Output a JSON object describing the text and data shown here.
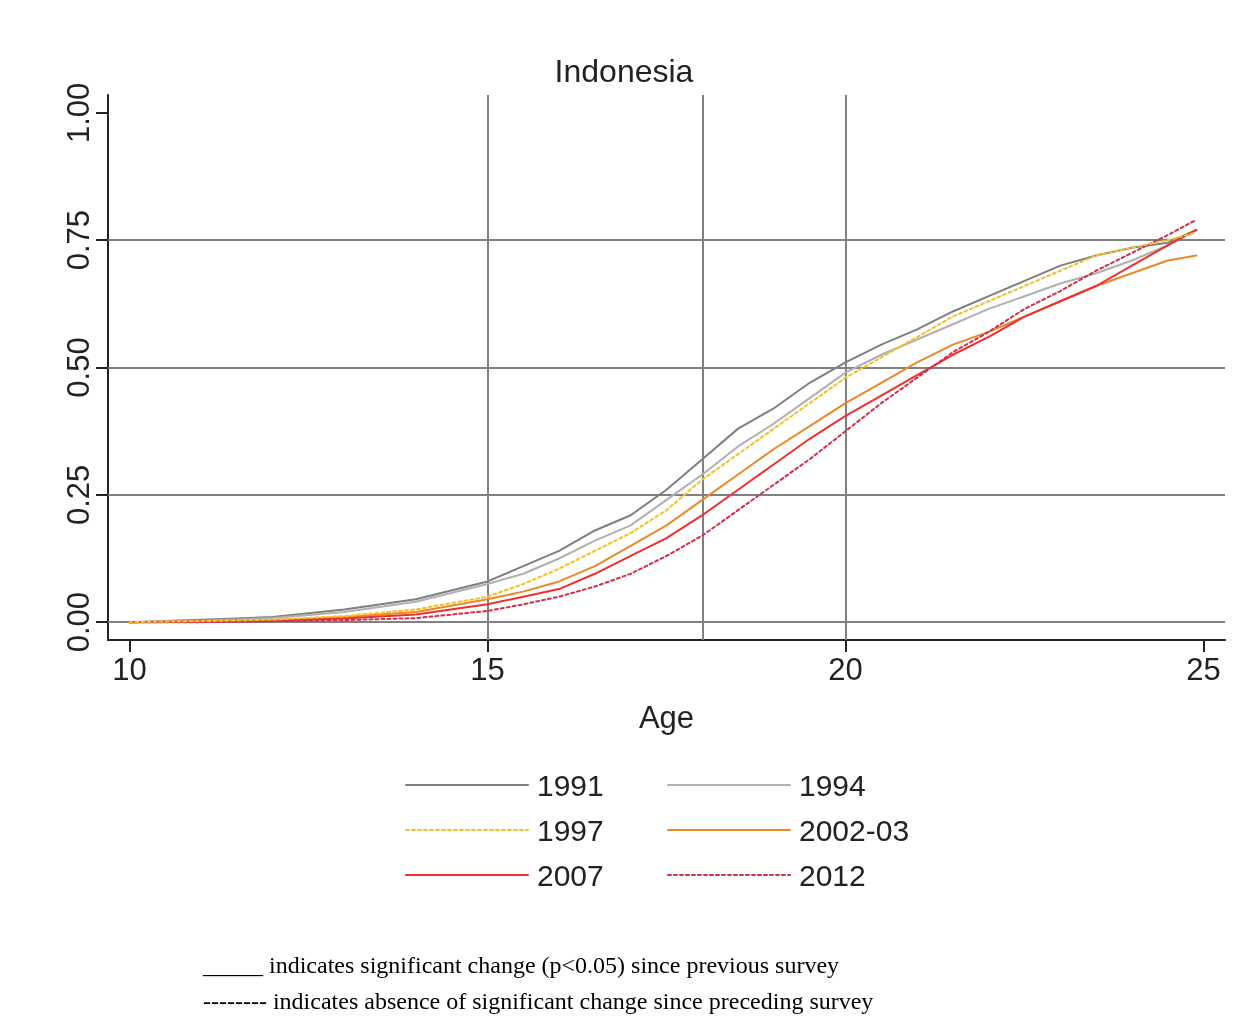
{
  "chart_data": {
    "type": "line",
    "title": "Indonesia",
    "xlabel": "Age",
    "x": [
      10,
      11,
      12,
      13,
      14,
      15,
      15.5,
      16,
      16.5,
      17,
      17.5,
      18,
      18.5,
      19,
      19.5,
      20,
      20.5,
      21,
      21.5,
      22,
      22.5,
      23,
      23.5,
      24,
      24.5,
      24.9
    ],
    "series": [
      {
        "name": "1991",
        "color": "#7f7f7f",
        "line_style": "solid",
        "values": [
          0,
          0.005,
          0.01,
          0.025,
          0.045,
          0.08,
          0.11,
          0.14,
          0.18,
          0.21,
          0.26,
          0.32,
          0.38,
          0.42,
          0.47,
          0.51,
          0.545,
          0.575,
          0.61,
          0.64,
          0.67,
          0.7,
          0.72,
          0.735,
          0.745,
          0.77
        ]
      },
      {
        "name": "1994",
        "color": "#b0b0b0",
        "line_style": "solid",
        "values": [
          0,
          0.003,
          0.008,
          0.02,
          0.04,
          0.075,
          0.095,
          0.125,
          0.16,
          0.19,
          0.24,
          0.29,
          0.345,
          0.39,
          0.44,
          0.49,
          0.525,
          0.555,
          0.585,
          0.615,
          0.64,
          0.665,
          0.685,
          0.71,
          0.74,
          0.77
        ]
      },
      {
        "name": "1997",
        "color": "#f2c12e",
        "line_style": "dashed",
        "values": [
          0,
          0.002,
          0.005,
          0.012,
          0.025,
          0.05,
          0.075,
          0.105,
          0.14,
          0.175,
          0.22,
          0.28,
          0.33,
          0.38,
          0.43,
          0.48,
          0.52,
          0.56,
          0.6,
          0.63,
          0.66,
          0.69,
          0.72,
          0.735,
          0.75,
          0.765
        ]
      },
      {
        "name": "2002-03",
        "color": "#e8892a",
        "line_style": "solid",
        "values": [
          0,
          0.002,
          0.004,
          0.01,
          0.02,
          0.045,
          0.06,
          0.08,
          0.11,
          0.15,
          0.19,
          0.24,
          0.29,
          0.34,
          0.385,
          0.43,
          0.47,
          0.51,
          0.545,
          0.57,
          0.6,
          0.63,
          0.66,
          0.685,
          0.71,
          0.72
        ]
      },
      {
        "name": "2007",
        "color": "#ee3030",
        "line_style": "solid",
        "values": [
          0,
          0.001,
          0.003,
          0.007,
          0.015,
          0.035,
          0.05,
          0.065,
          0.095,
          0.13,
          0.165,
          0.21,
          0.26,
          0.31,
          0.36,
          0.405,
          0.445,
          0.485,
          0.525,
          0.56,
          0.6,
          0.63,
          0.66,
          0.7,
          0.74,
          0.77
        ]
      },
      {
        "name": "2012",
        "color": "#d0304a",
        "line_style": "dashed",
        "values": [
          0,
          0,
          0.002,
          0.004,
          0.008,
          0.022,
          0.035,
          0.05,
          0.07,
          0.095,
          0.13,
          0.17,
          0.22,
          0.27,
          0.32,
          0.375,
          0.43,
          0.48,
          0.53,
          0.57,
          0.615,
          0.65,
          0.69,
          0.725,
          0.76,
          0.79
        ]
      }
    ],
    "xlim": [
      9.7,
      25.3
    ],
    "xticks": [
      10,
      15,
      20,
      25
    ],
    "ylim": [
      -0.035,
      1.035
    ],
    "yticks": [
      {
        "value": 0,
        "label": "0.00"
      },
      {
        "value": 0.25,
        "label": "0.25"
      },
      {
        "value": 0.5,
        "label": "0.50"
      },
      {
        "value": 0.75,
        "label": "0.75"
      },
      {
        "value": 1,
        "label": "1.00"
      }
    ],
    "ref_lines": [
      {
        "axis": "y",
        "value": 0,
        "color": "#808080"
      },
      {
        "axis": "y",
        "value": 0.25,
        "color": "#808080"
      },
      {
        "axis": "y",
        "value": 0.5,
        "color": "#808080"
      },
      {
        "axis": "y",
        "value": 0.75,
        "color": "#808080"
      },
      {
        "axis": "x",
        "value": 15,
        "color": "#808080"
      },
      {
        "axis": "x",
        "value": 18,
        "color": "#808080"
      },
      {
        "axis": "x",
        "value": 20,
        "color": "#808080"
      }
    ],
    "grid": false,
    "legend": "bottom",
    "marker": "none",
    "annotations": [
      "_____ indicates significant change (p<0.05) since previous survey",
      "-------- indicates absence of significant change since preceding survey"
    ]
  }
}
